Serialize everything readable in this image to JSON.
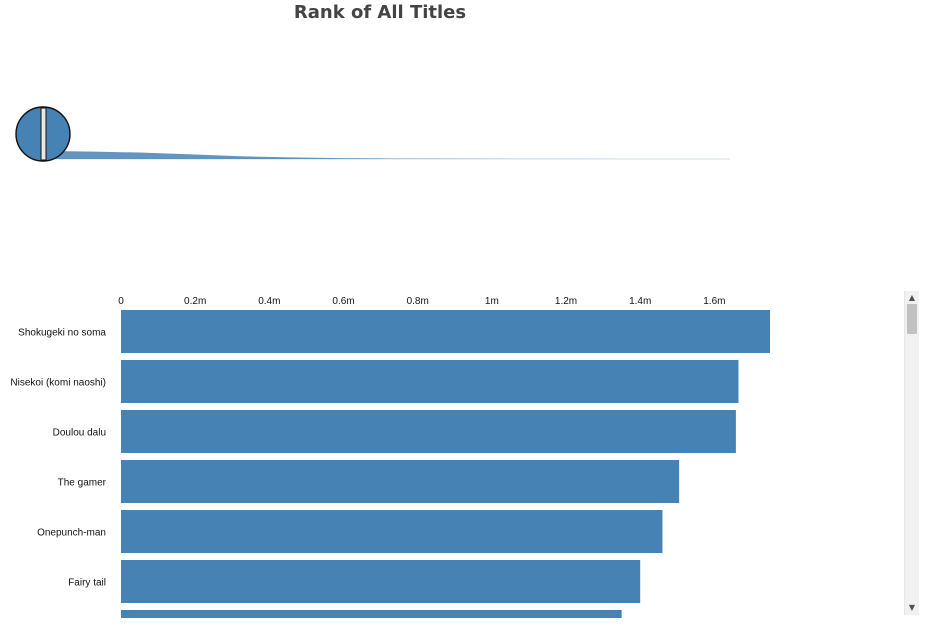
{
  "title": "Rank of All Titles",
  "accent_color": "#4682b4",
  "chart_data": [
    {
      "type": "area",
      "title": "Rank of All Titles",
      "description_marker": "overview-distribution",
      "series": [
        {
          "values": [
            1.75,
            1.6,
            1.4,
            1.0,
            0.6,
            0.35,
            0.2,
            0.12,
            0.08,
            0.05,
            0.03,
            0.02,
            0.01,
            0.005,
            0.0
          ]
        }
      ]
    },
    {
      "type": "bar",
      "orientation": "horizontal",
      "categories": [
        "Shokugeki no soma",
        "Nisekoi (komi naoshi)",
        "Doulou dalu",
        "The gamer",
        "Onepunch-man",
        "Fairy tail",
        ""
      ],
      "values": [
        1750000,
        1665000,
        1658000,
        1505000,
        1460000,
        1400000,
        1350000
      ],
      "x_ticks": [
        "0",
        "0.2m",
        "0.4m",
        "0.6m",
        "0.8m",
        "1m",
        "1.2m",
        "1.4m",
        "1.6m"
      ],
      "xlim": [
        0,
        1800000
      ],
      "color": "#4682b4",
      "grid": false,
      "axis_position": "top"
    }
  ],
  "scrollbar": {
    "up": "▲",
    "down": "▼"
  }
}
